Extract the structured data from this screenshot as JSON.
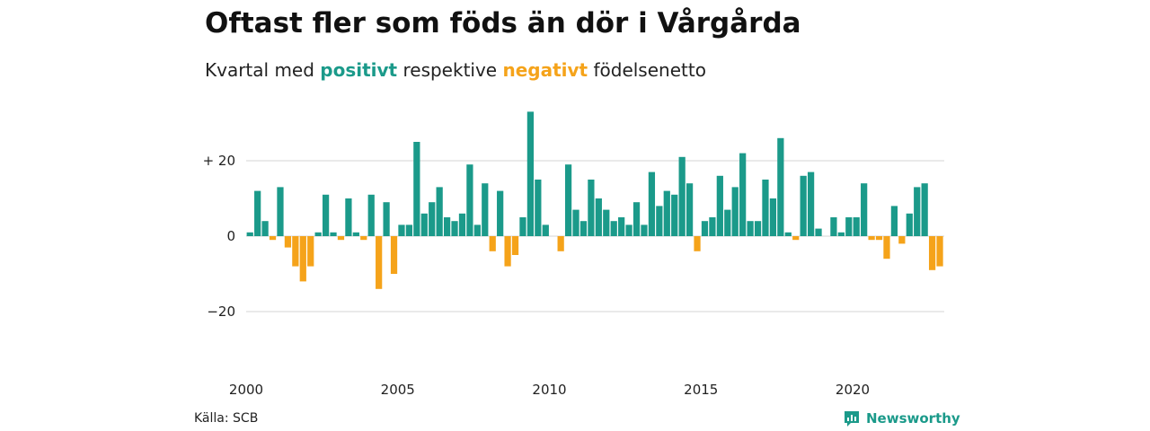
{
  "title": "Oftast fler som föds än dör i Vårgårda",
  "subtitle": {
    "prefix": "Kvartal med ",
    "positive": "positivt",
    "middle": " respektive ",
    "negative": "negativt",
    "suffix": " födelsenetto"
  },
  "source": "Källa: SCB",
  "brand": "Newsworthy",
  "colors": {
    "positive": "#1b9a8a",
    "negative": "#f5a31a",
    "grid": "#dddddd"
  },
  "chart_data": {
    "type": "bar",
    "x_start": 2000.0,
    "x_step": 0.25,
    "xlim": [
      2000,
      2023
    ],
    "ylim": [
      -30,
      38
    ],
    "y_ticks": [
      20,
      0,
      -20
    ],
    "y_tick_labels": [
      "+ 20",
      "0",
      "−20"
    ],
    "x_ticks": [
      2000,
      2005,
      2010,
      2015,
      2020
    ],
    "x_tick_labels": [
      "2000",
      "2005",
      "2010",
      "2015",
      "2020"
    ],
    "grid": true,
    "values": [
      1,
      12,
      4,
      -1,
      13,
      -3,
      -8,
      -12,
      -8,
      1,
      11,
      1,
      -1,
      10,
      1,
      -1,
      11,
      -14,
      9,
      -10,
      3,
      3,
      25,
      6,
      9,
      13,
      5,
      4,
      6,
      19,
      3,
      14,
      -4,
      12,
      -8,
      -5,
      5,
      33,
      15,
      3,
      0,
      -4,
      19,
      7,
      4,
      15,
      10,
      7,
      4,
      5,
      3,
      9,
      3,
      17,
      8,
      12,
      11,
      21,
      14,
      -4,
      4,
      5,
      16,
      7,
      13,
      22,
      4,
      4,
      15,
      10,
      26,
      1,
      -1,
      16,
      17,
      2,
      0,
      5,
      1,
      5,
      5,
      14,
      -1,
      -1,
      -6,
      8,
      -2,
      6,
      13,
      14,
      -9,
      -8
    ]
  }
}
